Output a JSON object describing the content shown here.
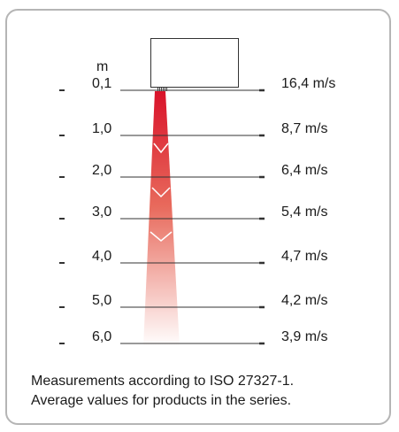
{
  "diagram": {
    "unit_label": "m",
    "rows": [
      {
        "distance": "0,1",
        "velocity": "16,4 m/s"
      },
      {
        "distance": "1,0",
        "velocity": "8,7 m/s"
      },
      {
        "distance": "2,0",
        "velocity": "6,4 m/s"
      },
      {
        "distance": "3,0",
        "velocity": "5,4 m/s"
      },
      {
        "distance": "4,0",
        "velocity": "4,7 m/s"
      },
      {
        "distance": "5,0",
        "velocity": "4,2 m/s"
      },
      {
        "distance": "6,0",
        "velocity": "3,9 m/s"
      }
    ],
    "beam_colors": {
      "top": "#d9132a",
      "bottom": "#ffffff"
    }
  },
  "caption": {
    "line1": "Measurements according to ISO 27327-1.",
    "line2": "Average values for products in the series."
  }
}
